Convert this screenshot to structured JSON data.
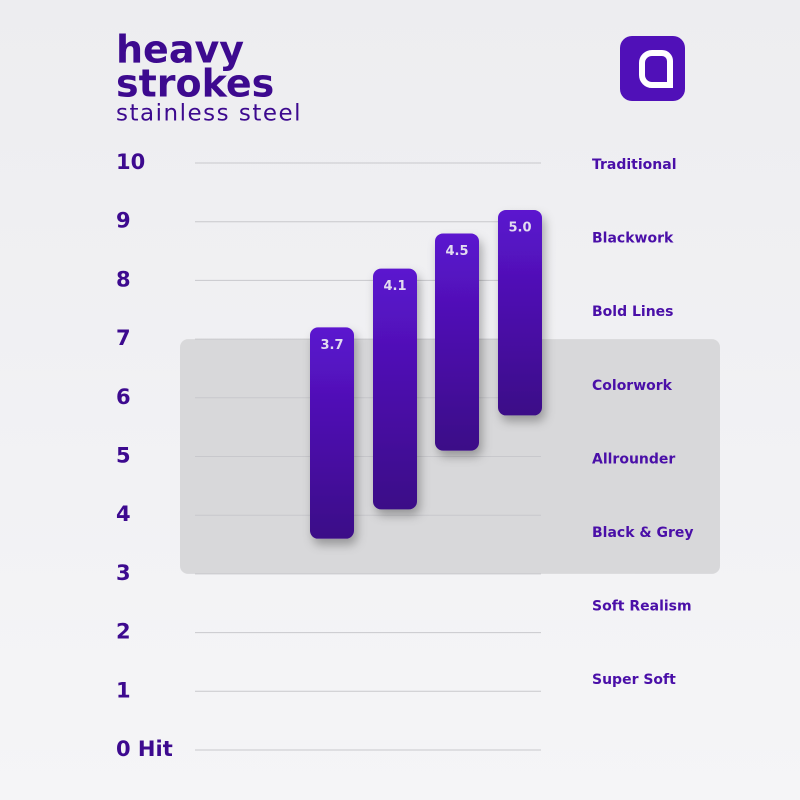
{
  "chart_data": {
    "type": "range-bar",
    "title": "heavy",
    "subtitle": "strokes",
    "caption": "stainless steel",
    "categories": [
      "3.7",
      "4.1",
      "4.5",
      "5.0"
    ],
    "low": [
      3.6,
      4.1,
      5.1,
      5.7
    ],
    "high": [
      7.2,
      8.2,
      8.8,
      9.2
    ],
    "color": "#4a0fb0",
    "ylim": [
      0,
      10
    ],
    "yticks": [
      {
        "value": 0,
        "label": "0 Hit"
      },
      1,
      2,
      3,
      4,
      5,
      6,
      7,
      8,
      9,
      10
    ],
    "grid": true,
    "highlight_range": [
      3,
      7
    ],
    "scale_labels": [
      "Traditional",
      "Blackwork",
      "Bold Lines",
      "Colorwork",
      "Allrounder",
      "Black & Grey",
      "Soft Realism",
      "Super Soft"
    ]
  }
}
